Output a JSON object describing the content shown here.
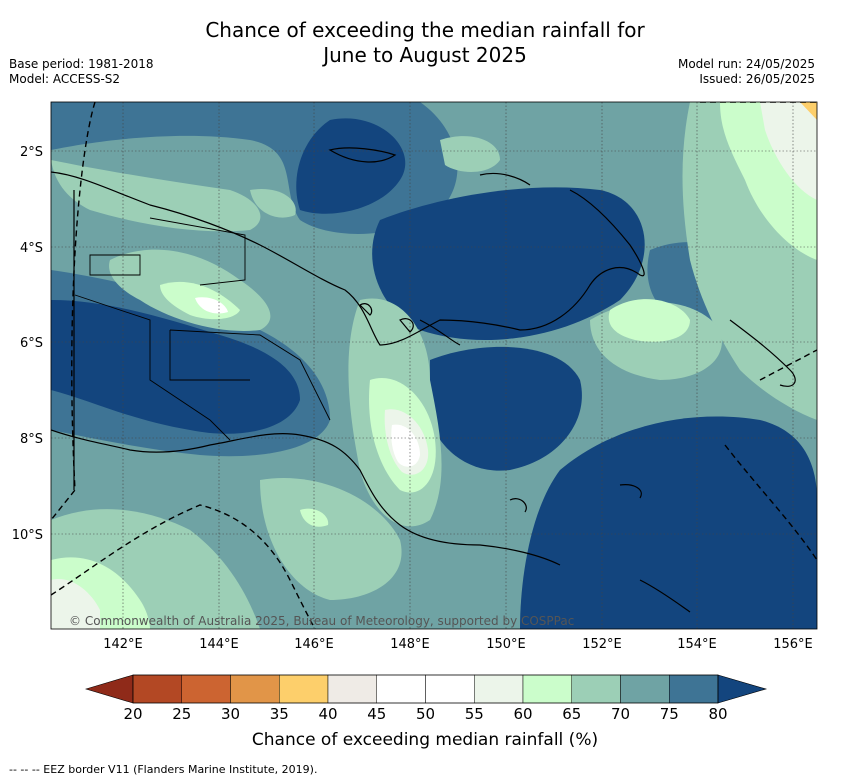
{
  "header": {
    "title_line1": "Chance of exceeding the median rainfall for",
    "title_line2": "June to August 2025",
    "base_period": "Base period: 1981-2018",
    "model": "Model: ACCESS-S2",
    "model_run": "Model run: 24/05/2025",
    "issued": "Issued: 26/05/2025"
  },
  "map": {
    "lat_labels": [
      "2°S",
      "4°S",
      "6°S",
      "8°S",
      "10°S"
    ],
    "lon_labels": [
      "142°E",
      "144°E",
      "146°E",
      "148°E",
      "150°E",
      "152°E",
      "154°E",
      "156°E"
    ],
    "copyright": "© Commonwealth of Australia 2025, Bureau of Meteorology, supported by COSPPac"
  },
  "colorbar": {
    "ticks": [
      "20",
      "25",
      "30",
      "35",
      "40",
      "45",
      "50",
      "55",
      "60",
      "65",
      "70",
      "75",
      "80"
    ],
    "colors": [
      "#b34824",
      "#cc6431",
      "#e19548",
      "#fdcf6b",
      "#efebe6",
      "#ffffff",
      "#ffffff",
      "#ecf5ea",
      "#cbfdcb",
      "#9ccfb6",
      "#6fa3a4",
      "#3e7495"
    ],
    "under_color": "#8f2a19",
    "over_color": "#13457e",
    "label": "Chance of exceeding median rainfall (%)"
  },
  "footnote": "--  --  -- EEZ border V11 (Flanders Marine Institute, 2019)."
}
